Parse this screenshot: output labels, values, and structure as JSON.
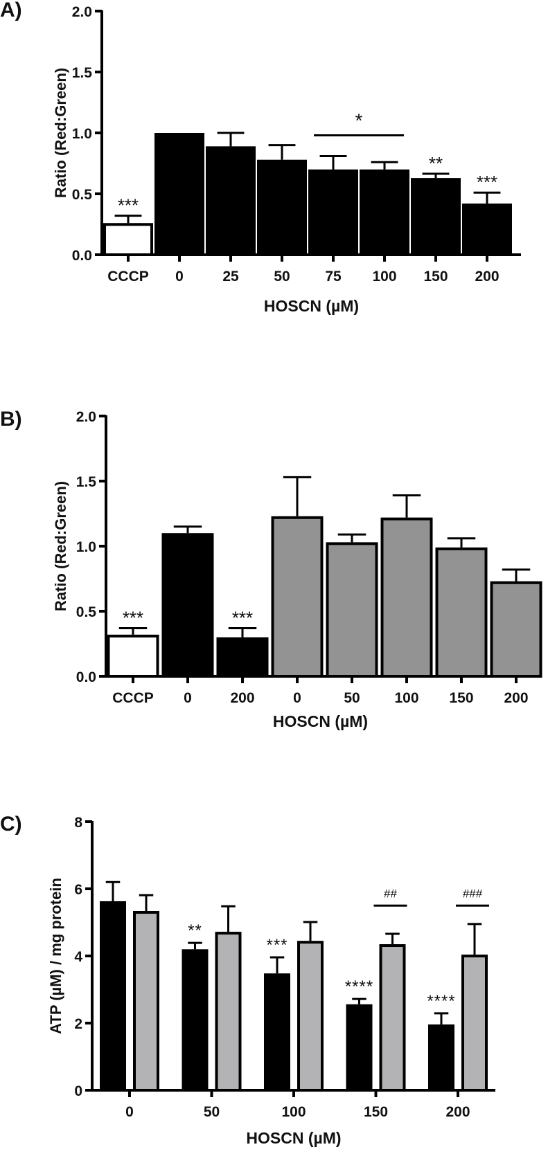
{
  "chart_data": [
    {
      "panel": "A)",
      "type": "bar",
      "ylabel": "Ratio (Red:Green)",
      "xlabel": "HOSCN (µM)",
      "ylim": [
        0,
        2.0
      ],
      "yticks": [
        "0.0",
        "0.5",
        "1.0",
        "1.5",
        "2.0"
      ],
      "categories": [
        "CCCP",
        "0",
        "25",
        "50",
        "75",
        "100",
        "150",
        "200"
      ],
      "values": [
        0.26,
        1.0,
        0.89,
        0.78,
        0.7,
        0.7,
        0.63,
        0.42
      ],
      "error_upper": [
        0.32,
        1.0,
        1.0,
        0.9,
        0.81,
        0.76,
        0.665,
        0.51
      ],
      "fills": [
        "#ffffff",
        "#000000",
        "#000000",
        "#000000",
        "#000000",
        "#000000",
        "#000000",
        "#000000"
      ],
      "annotations": [
        {
          "index": 0,
          "text": "***"
        },
        {
          "index": 6,
          "text": "**"
        },
        {
          "index": 7,
          "text": "***"
        },
        {
          "span": [
            4,
            5
          ],
          "text": "*",
          "line_value": 0.98
        }
      ]
    },
    {
      "panel": "B)",
      "type": "bar",
      "ylabel": "Ratio (Red:Green)",
      "xlabel": "HOSCN (µM)",
      "ylim": [
        0,
        2.0
      ],
      "yticks": [
        "0.0",
        "0.5",
        "1.0",
        "1.5",
        "2.0"
      ],
      "categories": [
        "CCCP",
        "0",
        "200",
        "0",
        "50",
        "100",
        "150",
        "200"
      ],
      "values": [
        0.32,
        1.1,
        0.3,
        1.23,
        1.03,
        1.22,
        0.99,
        0.73
      ],
      "error_upper": [
        0.37,
        1.15,
        0.37,
        1.53,
        1.09,
        1.39,
        1.06,
        0.82
      ],
      "fills": [
        "#ffffff",
        "#000000",
        "#000000",
        "#939393",
        "#939393",
        "#939393",
        "#939393",
        "#939393"
      ],
      "annotations": [
        {
          "index": 0,
          "text": "***"
        },
        {
          "index": 2,
          "text": "***"
        }
      ]
    },
    {
      "panel": "C)",
      "type": "bar",
      "ylabel": "ATP (µM) / mg protein",
      "xlabel": "HOSCN (µM)",
      "ylim": [
        0,
        8
      ],
      "yticks": [
        "0",
        "2",
        "4",
        "6",
        "8"
      ],
      "categories": [
        "0",
        "50",
        "100",
        "150",
        "200"
      ],
      "series": [
        {
          "name": "black",
          "fill": "#000000",
          "values": [
            5.63,
            4.2,
            3.48,
            2.56,
            1.96
          ],
          "error_upper": [
            6.2,
            4.39,
            3.96,
            2.72,
            2.29
          ]
        },
        {
          "name": "gray",
          "fill": "#b3b3b5",
          "values": [
            5.34,
            4.72,
            4.45,
            4.35,
            4.04
          ],
          "error_upper": [
            5.81,
            5.48,
            5.01,
            4.66,
            4.95
          ]
        }
      ],
      "annotations": [
        {
          "group": 1,
          "series": 0,
          "text": "**"
        },
        {
          "group": 2,
          "series": 0,
          "text": "***"
        },
        {
          "group": 3,
          "series": 0,
          "text": "****"
        },
        {
          "group": 4,
          "series": 0,
          "text": "****"
        },
        {
          "group": 3,
          "text": "##",
          "line_value": 5.5
        },
        {
          "group": 4,
          "text": "###",
          "line_value": 5.5
        }
      ]
    }
  ]
}
